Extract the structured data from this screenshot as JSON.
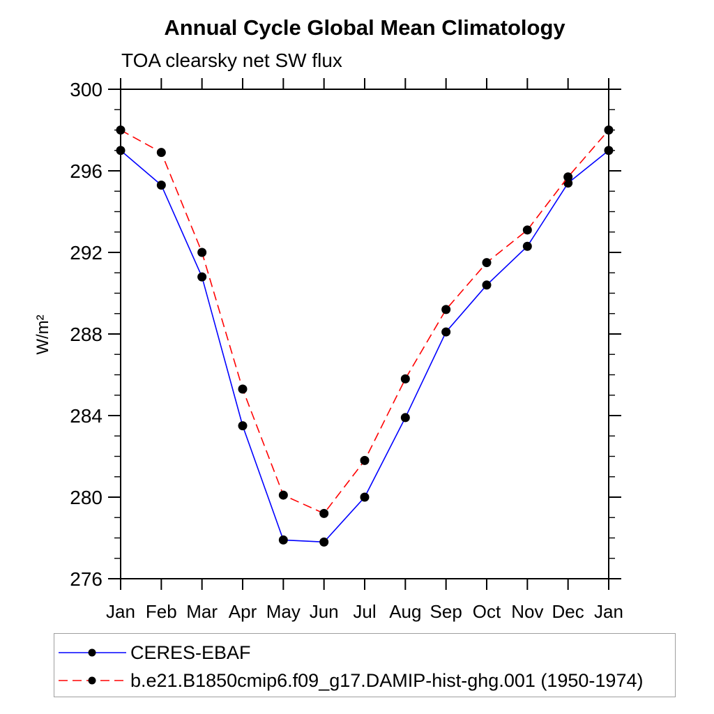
{
  "chart_data": {
    "type": "line",
    "title": "Annual Cycle Global Mean Climatology",
    "subtitle": "TOA clearsky net SW flux",
    "ylabel": "W/m²",
    "xlabel": "",
    "x_tick_labels": [
      "Jan",
      "Feb",
      "Mar",
      "Apr",
      "May",
      "Jun",
      "Jul",
      "Aug",
      "Sep",
      "Oct",
      "Nov",
      "Dec",
      "Jan"
    ],
    "ylim": [
      276,
      300
    ],
    "y_major_ticks": [
      276,
      280,
      284,
      288,
      292,
      296,
      300
    ],
    "y_minor_step": 1,
    "grid": false,
    "legend_position": "bottom-left-box",
    "frame_color": "#000000",
    "marker": "filled-circle",
    "marker_color": "#000000",
    "series": [
      {
        "name": "CERES-EBAF",
        "color": "#0000ff",
        "style": "solid",
        "values": [
          297.0,
          295.3,
          290.8,
          283.5,
          277.9,
          277.8,
          280.0,
          283.9,
          288.1,
          290.4,
          292.3,
          295.4,
          297.0
        ]
      },
      {
        "name": "b.e21.B1850cmip6.f09_g17.DAMIP-hist-ghg.001 (1950-1974)",
        "color": "#ff0000",
        "style": "dashed",
        "values": [
          298.0,
          296.9,
          292.0,
          285.3,
          280.1,
          279.2,
          281.8,
          285.8,
          289.2,
          291.5,
          293.1,
          295.7,
          298.0
        ]
      }
    ]
  }
}
